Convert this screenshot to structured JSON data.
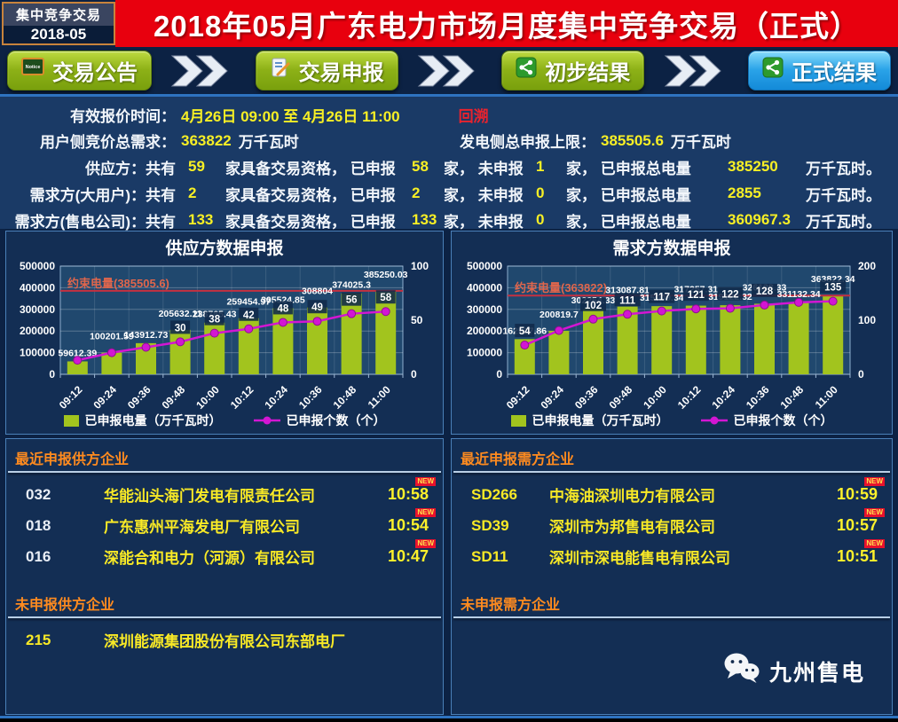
{
  "header": {
    "badge_line1": "集中竞争交易",
    "badge_line2": "2018-05",
    "title": "2018年05月广东电力市场月度集中竞争交易（正式）"
  },
  "nav": {
    "separator_icon": "double-chevron-icon",
    "items": [
      {
        "label": "交易公告",
        "style": "green",
        "icon": "notice-board-icon"
      },
      {
        "label": "交易申报",
        "style": "green",
        "icon": "report-form-icon"
      },
      {
        "label": "初步结果",
        "style": "green",
        "icon": "share-result-icon"
      },
      {
        "label": "正式结果",
        "style": "blue",
        "icon": "share-result-icon"
      }
    ]
  },
  "info": {
    "quote_time_label": "有效报价时间：",
    "quote_time_value": "4月26日 09:00 至 4月26日 11:00",
    "backtrack_label": "回溯",
    "demand_total_label": "用户侧竞价总需求：",
    "demand_total_value": "363822",
    "demand_total_unit": "万千瓦时",
    "supply_cap_label": "发电侧总申报上限：",
    "supply_cap_value": "385505.6",
    "supply_cap_unit": "万千瓦时",
    "stat_rows": [
      {
        "label": "供应方：共有",
        "total": "59",
        "t1": "家具备交易资格， 已申报",
        "declared": "58",
        "t2": "家， 未申报",
        "pending": "1",
        "t3": "家， 已申报总电量",
        "energy": "385250",
        "t4": "万千瓦时。"
      },
      {
        "label": "需求方(大用户)：共有",
        "total": "2",
        "t1": "家具备交易资格， 已申报",
        "declared": "2",
        "t2": "家， 未申报",
        "pending": "0",
        "t3": "家， 已申报总电量",
        "energy": "2855",
        "t4": "万千瓦时。"
      },
      {
        "label": "需求方(售电公司)：共有",
        "total": "133",
        "t1": "家具备交易资格， 已申报",
        "declared": "133",
        "t2": "家， 未申报",
        "pending": "0",
        "t3": "家， 已申报总电量",
        "energy": "360967.3",
        "t4": "万千瓦时。"
      }
    ]
  },
  "chart_data": [
    {
      "type": "bar",
      "title": "供应方数据申报",
      "categories": [
        "09:12",
        "09:24",
        "09:36",
        "09:48",
        "10:00",
        "10:12",
        "10:24",
        "10:36",
        "10:48",
        "11:00"
      ],
      "series": [
        {
          "name": "已申报电量（万千瓦时）",
          "kind": "bar",
          "axis": "left",
          "values": [
            59612.39,
            100201.59,
            143912.73,
            205632.11,
            238765.43,
            259454.97,
            305524.85,
            308804,
            374025.3,
            385250.03
          ],
          "labels": [
            "59612.39",
            "100201.59",
            "143912.73",
            "205632.11",
            "238765.43",
            "259454.97",
            "305524.85",
            "308804",
            "374025.3",
            "385250.03"
          ]
        },
        {
          "name": "已申报个数（个）",
          "kind": "line",
          "axis": "right",
          "values": [
            13,
            20,
            25,
            30,
            38,
            42,
            48,
            49,
            56,
            58
          ],
          "labels": [
            "",
            "",
            "",
            "30",
            "38",
            "42",
            "48",
            "49",
            "56",
            "58"
          ]
        }
      ],
      "constraint": {
        "label": "约束电量(385505.6)",
        "value": 385505.6
      },
      "left_axis": {
        "min": 0,
        "max": 500000,
        "ticks": [
          "0",
          "100000",
          "200000",
          "300000",
          "400000",
          "500000"
        ]
      },
      "right_axis": {
        "min": 0,
        "max": 100,
        "ticks": [
          "0",
          "50",
          "100"
        ]
      },
      "legend_position": "bottom",
      "grid": true
    },
    {
      "type": "bar",
      "title": "需求方数据申报",
      "categories": [
        "09:12",
        "09:24",
        "09:36",
        "09:48",
        "10:00",
        "10:12",
        "10:24",
        "10:36",
        "10:48",
        "11:00"
      ],
      "series": [
        {
          "name": "已申报电量（万千瓦时）",
          "kind": "bar",
          "axis": "left",
          "values": [
            162517.86,
            200819.7,
            302254.33,
            313087.81,
            315009.34,
            317257.31,
            319122.32,
            326128.33,
            331132.34,
            363822.34
          ],
          "labels": [
            "162517.86",
            "200819.7",
            "302254.33",
            "313087.81",
            "315009.34",
            "317257.31",
            "319122.32",
            "326128.33",
            "331132.34",
            "363822.34"
          ]
        },
        {
          "name": "已申报个数（个）",
          "kind": "line",
          "axis": "right",
          "values": [
            54,
            81,
            102,
            111,
            117,
            121,
            122,
            128,
            133,
            135
          ],
          "labels": [
            "54",
            "",
            "102",
            "111",
            "117",
            "121",
            "122",
            "128",
            "",
            "135"
          ]
        }
      ],
      "constraint": {
        "label": "约束电量(363822)",
        "value": 363822
      },
      "left_axis": {
        "min": 0,
        "max": 500000,
        "ticks": [
          "0",
          "100000",
          "200000",
          "300000",
          "400000",
          "500000"
        ]
      },
      "right_axis": {
        "min": 0,
        "max": 200,
        "ticks": [
          "0",
          "100",
          "200"
        ]
      },
      "legend_position": "bottom",
      "grid": true
    }
  ],
  "lists": {
    "new_badge": "NEW",
    "supply_recent": {
      "title": "最近申报供方企业",
      "rows": [
        {
          "code": "032",
          "name": "华能汕头海门发电有限责任公司",
          "time": "10:58",
          "new": true
        },
        {
          "code": "018",
          "name": "广东惠州平海发电厂有限公司",
          "time": "10:54",
          "new": true
        },
        {
          "code": "016",
          "name": "深能合和电力（河源）有限公司",
          "time": "10:47",
          "new": true
        }
      ]
    },
    "supply_pending": {
      "title": "未申报供方企业",
      "rows": [
        {
          "code": "215",
          "name": "深圳能源集团股份有限公司东部电厂"
        }
      ]
    },
    "demand_recent": {
      "title": "最近申报需方企业",
      "rows": [
        {
          "code": "SD266",
          "name": "中海油深圳电力有限公司",
          "time": "10:59",
          "new": true
        },
        {
          "code": "SD39",
          "name": "深圳市为邦售电有限公司",
          "time": "10:57",
          "new": true
        },
        {
          "code": "SD11",
          "name": "深圳市深电能售电有限公司",
          "time": "10:51",
          "new": true
        }
      ]
    },
    "demand_pending": {
      "title": "未申报需方企业",
      "rows": []
    }
  },
  "footer": {
    "brand": "九州售电",
    "brand_icon": "wechat-icon"
  },
  "colors": {
    "banner_red": "#e8000e",
    "bar_green": "#a2c41e",
    "line_magenta": "#d316d3",
    "constraint_red": "#c53040",
    "constraint_label": "#e0664c",
    "value_yellow": "#f7ef25",
    "section_orange": "#ff8b1f",
    "green_button": "#8db117",
    "blue_button": "#2aa3e8",
    "new_badge_bg": "#e8112d"
  }
}
